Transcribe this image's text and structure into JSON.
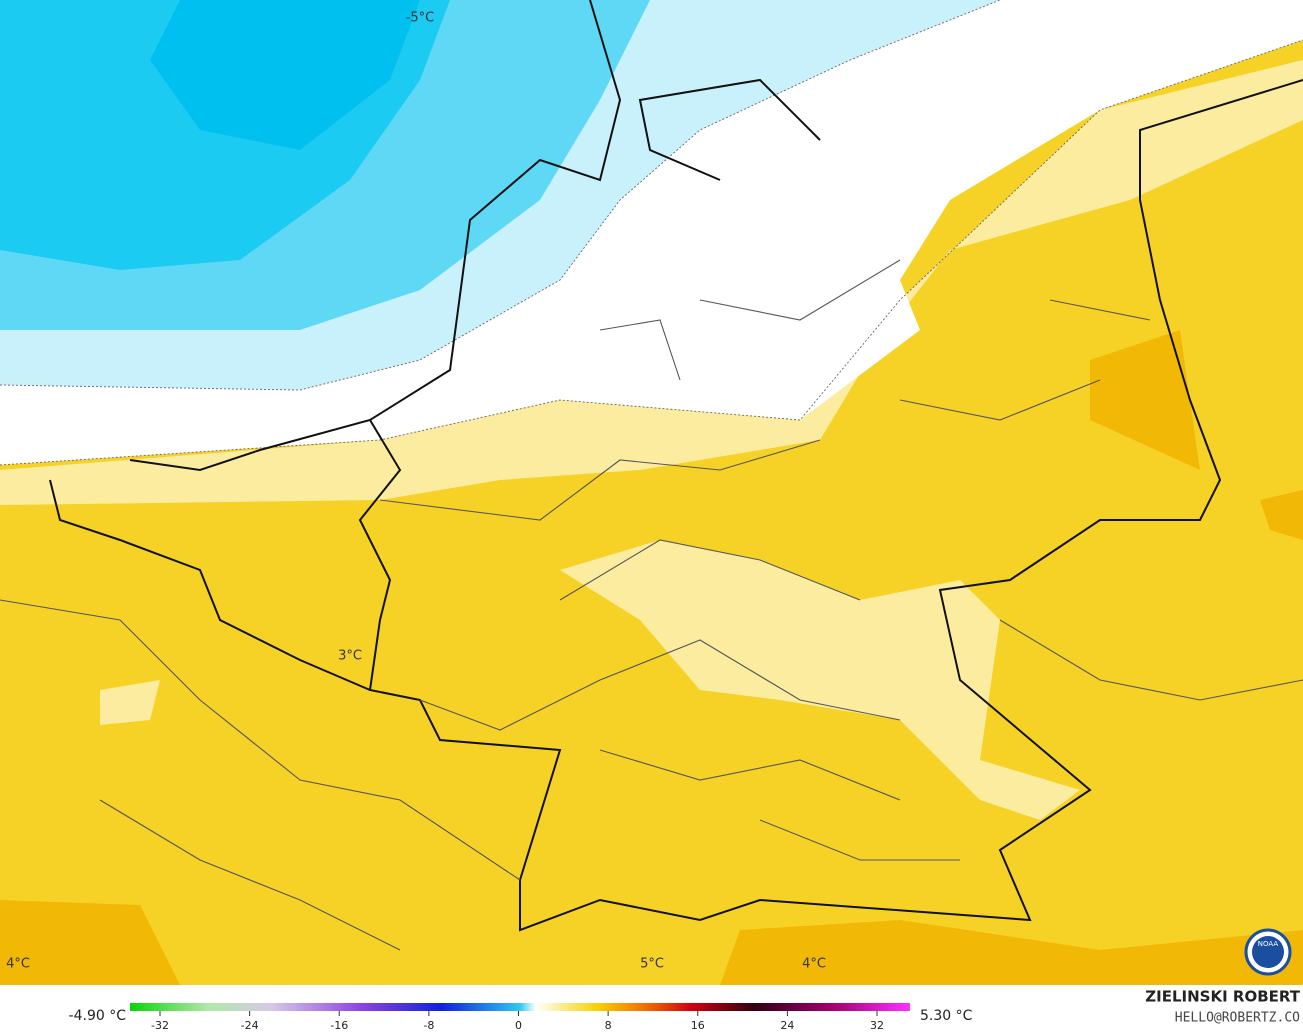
{
  "map": {
    "contour_labels": [
      "-5°C",
      "3°C",
      "4°C",
      "5°C",
      "4°C"
    ],
    "legend": {
      "min_label": "-4.90 °C",
      "max_label": "5.30 °C",
      "ticks": [
        -32,
        -24,
        -16,
        -8,
        0,
        8,
        16,
        24,
        32
      ]
    },
    "credit": {
      "author": "ZIELINSKI ROBERT",
      "contact": "HELLO@ROBERTZ.CO",
      "logo": "NOAA"
    }
  }
}
